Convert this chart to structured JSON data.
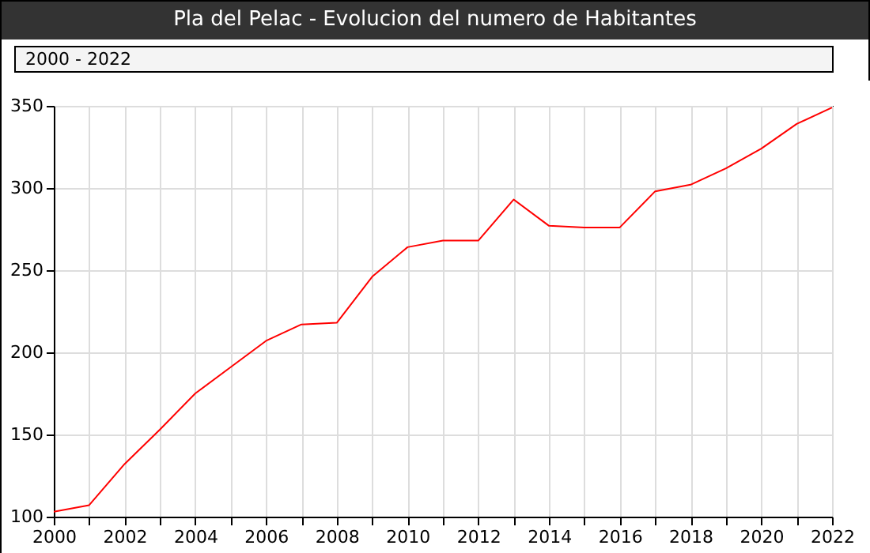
{
  "chart_data": {
    "type": "line",
    "title": "Pla del Pelac - Evolucion del numero de Habitantes",
    "subtitle": "2000 - 2022",
    "x": [
      2000,
      2001,
      2002,
      2003,
      2004,
      2005,
      2006,
      2007,
      2008,
      2009,
      2010,
      2011,
      2012,
      2013,
      2014,
      2015,
      2016,
      2017,
      2018,
      2019,
      2020,
      2021,
      2022
    ],
    "series": [
      {
        "color": "#ff0000",
        "values": [
          103,
          107,
          132,
          153,
          175,
          191,
          207,
          217,
          218,
          246,
          264,
          268,
          268,
          293,
          277,
          276,
          276,
          298,
          302,
          312,
          324,
          339,
          349
        ]
      }
    ],
    "xlim": [
      2000,
      2022
    ],
    "xticks": [
      2000,
      {
        "value": 2001,
        "label": null
      },
      2002,
      {
        "value": 2003,
        "label": null
      },
      2004,
      {
        "value": 2005,
        "label": null
      },
      2006,
      {
        "value": 2007,
        "label": null
      },
      2008,
      {
        "value": 2009,
        "label": null
      },
      2010,
      {
        "value": 2011,
        "label": null
      },
      2012,
      {
        "value": 2013,
        "label": null
      },
      2014,
      {
        "value": 2015,
        "label": null
      },
      2016,
      {
        "value": 2017,
        "label": null
      },
      2018,
      {
        "value": 2019,
        "label": null
      },
      2020,
      {
        "value": 2021,
        "label": null
      },
      2022
    ],
    "ylim": [
      100,
      350
    ],
    "yticks": [
      100,
      150,
      200,
      250,
      300,
      350
    ],
    "grid": true,
    "legend": false,
    "marker": "none",
    "line_style": "solid"
  }
}
